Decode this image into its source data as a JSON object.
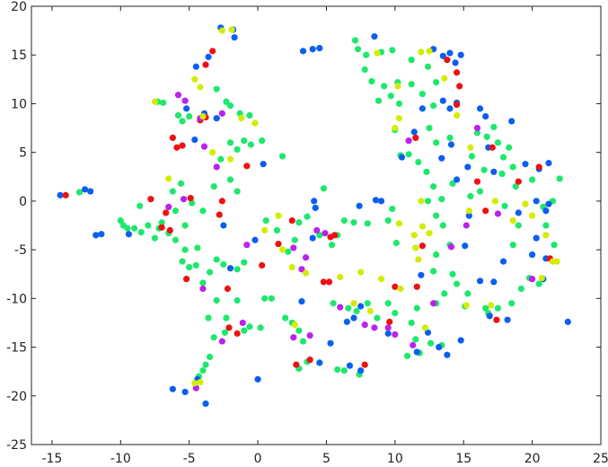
{
  "chart_data": {
    "type": "scatter",
    "xlim": [
      -16.5,
      25
    ],
    "xticks": [
      -15,
      -10,
      -5,
      0,
      5,
      10,
      15,
      20,
      25
    ],
    "ylim": [
      -25,
      20
    ],
    "yticks": [
      -25,
      -20,
      -15,
      -10,
      -5,
      0,
      5,
      10,
      15,
      20
    ],
    "series": [
      {
        "color": "#1de86c",
        "x": [
          -13.0,
          -10.0,
          -9.8,
          -9.0,
          -8.5,
          -8.0,
          -7.5,
          -7.0,
          -6.5,
          -6.0,
          -7.3,
          -6.9,
          -5.8,
          -5.5,
          -5.0,
          -6.2,
          -5.6,
          -4.8,
          -5.3,
          -5.0,
          -5.5,
          -4.5,
          -3.5,
          -3.0,
          -2.5,
          -1.5,
          -1.0,
          -3.0,
          -3.6,
          -3.2,
          -2.4,
          -1.0,
          -0.6,
          0.2,
          0.5,
          1.0,
          2.0,
          2.5,
          3.0,
          3.3,
          3.0,
          3.6,
          5.8,
          6.3,
          7.4,
          -3.5,
          -3.8,
          -4.0,
          -4.3,
          -3.0,
          -2.3,
          -2.0,
          -1.3,
          -0.6,
          -2.0,
          -1.5,
          -1.0,
          -0.5,
          0.3,
          -2.7,
          -2.0,
          -3.2,
          -4.0,
          -1.5,
          1.8,
          0.6,
          1.4,
          2.7,
          2.2,
          3.0,
          3.6,
          4.5,
          4.8,
          5.4,
          5.5,
          6.6,
          7.2,
          8.0,
          8.7,
          9.5,
          10.0,
          11.2,
          11.6,
          13.0,
          13.6,
          14.5,
          15.3,
          15.1,
          16.8,
          17.5,
          18.5,
          19.2,
          19.8,
          20.5,
          18.6,
          19.0,
          18.0,
          21.6,
          21.0,
          22.0,
          21.5,
          20.8,
          20.0,
          18.8,
          18.6,
          17.9,
          17.8,
          16.5,
          16.2,
          15.5,
          16.7,
          17.5,
          18.3,
          17.2,
          16.0,
          15.6,
          14.0,
          13.0,
          12.5,
          12.8,
          12.0,
          11.2,
          10.3,
          9.7,
          8.8,
          9.2,
          10.2,
          8.3,
          7.8,
          7.3,
          7.9,
          9.0,
          9.8,
          7.1,
          11.2,
          12.4,
          13.0,
          12.3,
          12.8,
          13.4,
          14.2,
          13.0,
          13.5,
          14.0,
          13.0,
          12.8,
          14.2,
          10.0,
          10.4,
          11.0,
          11.7,
          12.4,
          10.1,
          9.8,
          9.5,
          8.0,
          7.0,
          6.3,
          5.8,
          10.9,
          11.8,
          12.6,
          13.4,
          11.5,
          16.6,
          -9.5,
          -8.6,
          -7.2,
          -6.0,
          -5.3,
          -4.4,
          -4.0,
          -1.5,
          -2.3
        ],
        "y": [
          0.9,
          -2.0,
          -2.5,
          -2.8,
          -3.2,
          -2.5,
          -3.8,
          -2.2,
          -3.3,
          -4.0,
          10.2,
          10.1,
          8.8,
          8.2,
          8.7,
          1.0,
          1.8,
          -0.2,
          -5.0,
          -6.8,
          -6.2,
          -6.6,
          -7.3,
          -6.0,
          -6.5,
          -7.0,
          -6.3,
          -10.2,
          -12.0,
          -14.0,
          -13.5,
          -13.3,
          -12.9,
          -13.0,
          -10.0,
          -10.0,
          -12.0,
          -12.5,
          -13.3,
          -14.4,
          -17.2,
          -16.5,
          -17.3,
          -17.4,
          -17.8,
          -16.0,
          -16.8,
          -17.4,
          -18.0,
          11.5,
          10.2,
          9.8,
          9.0,
          8.8,
          6.0,
          5.3,
          6.2,
          5.8,
          6.2,
          4.3,
          2.2,
          1.5,
          -1.0,
          1.0,
          4.6,
          -2.0,
          -3.0,
          -4.0,
          -5.2,
          -2.2,
          -1.6,
          -3.5,
          1.3,
          -4.5,
          -10.5,
          -11.0,
          -11.3,
          -10.5,
          -12.0,
          -10.5,
          -11.5,
          -12.5,
          -11.0,
          -10.5,
          -9.5,
          -8.5,
          -9.5,
          -10.8,
          -11.5,
          -11.0,
          -10.5,
          -9.0,
          -7.9,
          -8.5,
          -4.5,
          -2.5,
          -0.5,
          -4.5,
          -2.5,
          2.3,
          0.0,
          -0.6,
          2.2,
          1.5,
          3.5,
          4.5,
          2.8,
          3.2,
          1.0,
          0.5,
          6.6,
          6.0,
          5.5,
          7.6,
          7.0,
          4.6,
          6.5,
          6.0,
          7.5,
          9.8,
          11.0,
          12.0,
          10.0,
          10.8,
          10.3,
          11.8,
          12.2,
          12.3,
          13.5,
          15.6,
          15.0,
          15.3,
          15.5,
          16.5,
          14.5,
          13.8,
          12.2,
          3.0,
          1.5,
          0.2,
          1.8,
          -1.5,
          -2.5,
          -4.5,
          -5.5,
          -7.2,
          -7.5,
          7.3,
          4.7,
          4.8,
          4.0,
          0.0,
          -4.3,
          -0.8,
          -2.0,
          -2.3,
          -2.2,
          -2.0,
          -3.5,
          -15.9,
          -15.6,
          -14.6,
          -14.8,
          -14.2,
          -11.0,
          -2.8,
          -0.5,
          -2.8,
          -1.0,
          -2.5,
          -4.8,
          -8.4,
          -10.2,
          -12.0
        ]
      },
      {
        "color": "#0b5fef",
        "x": [
          -14.4,
          -12.6,
          -12.2,
          -11.8,
          -11.4,
          -9.4,
          -6.2,
          -5.3,
          -4.4,
          -3.8,
          -4.5,
          -3.6,
          -2.7,
          -1.8,
          -1.7,
          -5.2,
          -3.9,
          -4.6,
          -3.0,
          0.4,
          -2.0,
          -2.5,
          -0.2,
          0,
          3.2,
          4.0,
          4.1,
          4.2,
          3.3,
          4.0,
          4.5,
          5.3,
          4.5,
          6.7,
          7.5,
          7.5,
          7.4,
          8.6,
          9.0,
          9.5,
          11.4,
          12.0,
          11.9,
          12.8,
          13.5,
          14.0,
          14.4,
          14.8,
          13.5,
          14.0,
          14.5,
          13.4,
          14.1,
          14.5,
          15.3,
          16.2,
          16.6,
          16.8,
          17.2,
          18.5,
          19.5,
          20.5,
          21.2,
          20.3,
          21.2,
          21.0,
          19.0,
          20.3,
          20.0,
          21.0,
          20.8,
          18.2,
          16.9,
          17.2,
          17.9,
          22.6,
          15.1,
          13.8,
          14.8,
          12.4,
          11.6,
          13.2,
          8.5,
          7.0,
          6.5,
          15.4,
          10.5,
          16.2
        ],
        "y": [
          0.6,
          1.2,
          1.0,
          -3.5,
          -3.4,
          -3.4,
          -19.3,
          -19.6,
          -18.3,
          -20.8,
          13.8,
          14.8,
          17.8,
          17.6,
          16.8,
          9.5,
          9.0,
          6.3,
          8.5,
          3.8,
          -6.9,
          -2.5,
          -4.0,
          -18.3,
          -10.3,
          -3.8,
          0.0,
          -0.7,
          15.4,
          15.6,
          15.7,
          -14.6,
          -16.6,
          -16.9,
          -17.4,
          -10.8,
          -0.5,
          0.1,
          0.0,
          -13.6,
          7.1,
          9.5,
          -7.6,
          15.6,
          14.9,
          15.2,
          14.2,
          15.0,
          10.3,
          9.5,
          10.1,
          4.4,
          5.8,
          2.2,
          3.5,
          9.5,
          8.7,
          5.5,
          3.0,
          8.2,
          3.8,
          3.3,
          3.9,
          0.0,
          -0.3,
          -1.0,
          -1.2,
          -3.8,
          -5.5,
          -5.9,
          -8.0,
          -12.2,
          -11.8,
          -8.3,
          -6.2,
          -12.4,
          -4.6,
          -15.8,
          -14.3,
          -13.5,
          -15.5,
          -15.0,
          16.9,
          -12.0,
          -12.4,
          -1.5,
          4.5,
          -8.2
        ]
      },
      {
        "color": "#ee1111",
        "x": [
          -14.0,
          -7.8,
          -7.0,
          -6.7,
          -6.4,
          -6.2,
          -5.9,
          -5.5,
          -5.2,
          -4.9,
          -4.2,
          -3.8,
          -3.8,
          -3.3,
          -2.6,
          -2.8,
          -2.2,
          -1.5,
          -2.1,
          -0.8,
          0.3,
          1.5,
          2.5,
          2.8,
          3.8,
          4.8,
          5.2,
          5.3,
          5.6,
          7.8,
          9.6,
          10.0,
          11.6,
          12.0,
          11.5,
          14.5,
          14.5,
          14.7,
          13.8,
          16.0,
          16.6,
          17.1,
          19.0,
          20.5,
          21.3,
          17.4
        ],
        "y": [
          0.6,
          0.2,
          -2.7,
          -1.2,
          -3.0,
          6.5,
          5.5,
          5.7,
          -8.0,
          0.3,
          8.3,
          8.6,
          14.0,
          15.4,
          0.0,
          -1.4,
          -9.0,
          -13.6,
          -13.0,
          3.6,
          -6.6,
          -4.4,
          -2.0,
          -16.8,
          -16.3,
          -8.3,
          -8.3,
          -3.7,
          -3.5,
          -16.8,
          -12.4,
          -8.8,
          -8.8,
          -4.6,
          6.5,
          9.9,
          13.2,
          11.8,
          14.5,
          2.0,
          -1.0,
          5.5,
          2.0,
          3.5,
          -5.9,
          -12.2
        ]
      },
      {
        "color": "#bb22ee",
        "x": [
          -5.8,
          -5.3,
          -4.2,
          -3.9,
          -2.6,
          -3.0,
          -5.4,
          -6.5,
          -4.5,
          -4.0,
          -2.6,
          -1.1,
          -0.8,
          2.6,
          3.2,
          3.5,
          2.6,
          3.8,
          4.9,
          6.0,
          7.8,
          8.5,
          9.5,
          10.0,
          11.3,
          12.8,
          11.0,
          14.1,
          15.2,
          16.0,
          17.5,
          20.0,
          4.3
        ],
        "y": [
          10.9,
          10.3,
          8.5,
          5.6,
          9.0,
          3.5,
          0.2,
          -0.6,
          -19.2,
          -9.0,
          -14.4,
          -12.5,
          -4.5,
          -4.8,
          -7.0,
          -5.8,
          -14.0,
          -13.8,
          -3.3,
          -10.9,
          -12.7,
          -13.0,
          -13.0,
          -13.7,
          -14.8,
          -10.5,
          6.2,
          -4.7,
          -2.5,
          7.5,
          -1.3,
          -8.0,
          -3.0
        ]
      },
      {
        "color": "#d4ec00",
        "x": [
          -7.5,
          -6.5,
          -4.6,
          -4.2,
          -4.0,
          -3.3,
          -2.0,
          -1.2,
          -0.2,
          0.5,
          1.5,
          1.8,
          2.5,
          2.7,
          3.5,
          6.0,
          7.0,
          7.5,
          8.2,
          9.0,
          10.3,
          10.4,
          11.5,
          11.7,
          12.2,
          11.4,
          12.0,
          12.5,
          11.9,
          10.2,
          10.0,
          10.3,
          11.9,
          13.6,
          14.5,
          15.5,
          15.4,
          15.2,
          17.3,
          18.6,
          19.5,
          20.0,
          21.5,
          20.7,
          21.0,
          21.8,
          17.0,
          -4.6,
          -4.2,
          -1.9,
          -2.6,
          8.7,
          12.5
        ],
        "y": [
          10.2,
          2.3,
          12.5,
          11.7,
          8.7,
          5.0,
          4.3,
          8.5,
          8.0,
          -3.0,
          -1.5,
          -5.0,
          -6.8,
          -12.7,
          -7.4,
          -7.8,
          -10.5,
          -7.3,
          -11.3,
          -8.0,
          -2.3,
          -9.0,
          -4.8,
          -6.0,
          -13.0,
          -3.5,
          -2.6,
          -3.3,
          0.0,
          11.8,
          7.5,
          8.5,
          15.3,
          12.6,
          8.8,
          5.5,
          -1.0,
          -10.7,
          0.0,
          -2.0,
          -0.3,
          -1.5,
          -6.2,
          -7.9,
          -3.5,
          -6.2,
          -10.7,
          -18.7,
          -18.6,
          17.6,
          17.5,
          15.2,
          15.4
        ]
      }
    ]
  }
}
